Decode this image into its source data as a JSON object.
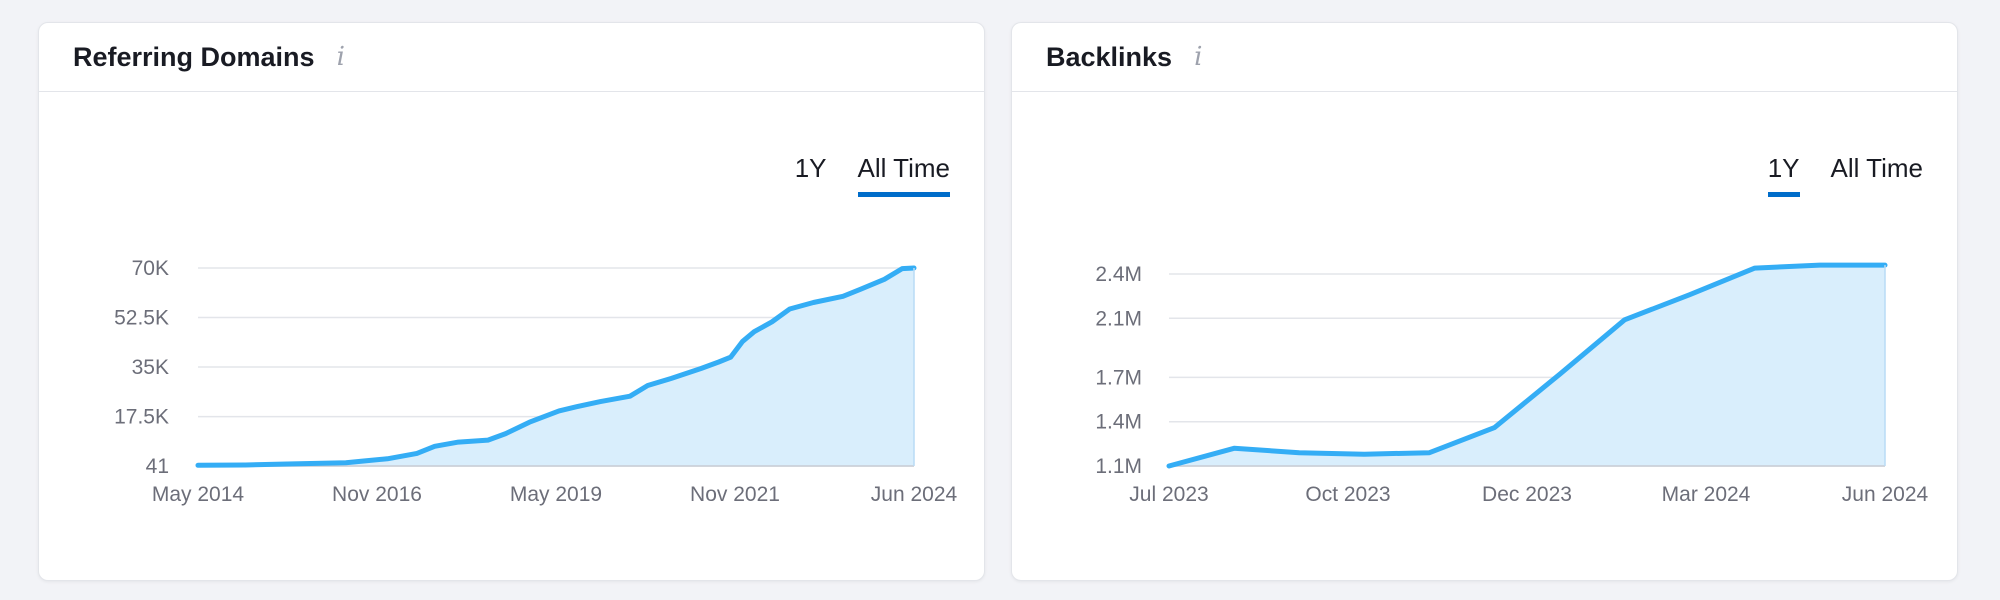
{
  "colors": {
    "line": "#34adf5",
    "area": "#d9eefc",
    "tab_active": "#006dca"
  },
  "referring_domains": {
    "title": "Referring Domains",
    "info_icon": "info-icon",
    "tabs": [
      {
        "label": "1Y",
        "active": false
      },
      {
        "label": "All Time",
        "active": true
      }
    ]
  },
  "backlinks": {
    "title": "Backlinks",
    "info_icon": "info-icon",
    "tabs": [
      {
        "label": "1Y",
        "active": true
      },
      {
        "label": "All Time",
        "active": false
      }
    ]
  },
  "chart_data": [
    {
      "type": "area",
      "title": "Referring Domains",
      "x_ticks": [
        "May 2014",
        "Nov 2016",
        "May 2019",
        "Nov 2021",
        "Jun 2024"
      ],
      "y_ticks": [
        "41",
        "17.5K",
        "35K",
        "52.5K",
        "70K"
      ],
      "ylim": [
        41,
        70000
      ],
      "grid": true,
      "x": [
        "2014-05",
        "2015-01",
        "2015-09",
        "2016-06",
        "2016-09",
        "2017-01",
        "2017-06",
        "2017-09",
        "2018-01",
        "2018-06",
        "2018-09",
        "2019-01",
        "2019-06",
        "2019-09",
        "2020-01",
        "2020-06",
        "2020-09",
        "2021-01",
        "2021-06",
        "2021-09",
        "2021-11",
        "2022-01",
        "2022-03",
        "2022-06",
        "2022-09",
        "2023-01",
        "2023-06",
        "2023-09",
        "2024-01",
        "2024-04",
        "2024-06"
      ],
      "y": [
        300,
        400,
        800,
        1200,
        1800,
        2600,
        4500,
        7000,
        8500,
        9200,
        11500,
        15500,
        19500,
        21000,
        22800,
        24700,
        28500,
        31000,
        34500,
        36800,
        38500,
        44000,
        47500,
        51000,
        55500,
        57800,
        60000,
        62500,
        66000,
        69800,
        70000
      ]
    },
    {
      "type": "area",
      "title": "Backlinks",
      "x_ticks": [
        "Jul 2023",
        "Oct 2023",
        "Dec 2023",
        "Mar 2024",
        "Jun 2024"
      ],
      "y_ticks": [
        "1.1M",
        "1.4M",
        "1.7M",
        "2.1M",
        "2.4M"
      ],
      "ylim": [
        1100000,
        2400000
      ],
      "grid": true,
      "x": [
        "Jul 2023",
        "Aug 2023",
        "Sep 2023",
        "Oct 2023",
        "Nov 2023",
        "Dec 2023",
        "Jan 2024",
        "Feb 2024",
        "Mar 2024",
        "Apr 2024",
        "May 2024",
        "Jun 2024"
      ],
      "y": [
        1100000,
        1220000,
        1190000,
        1180000,
        1190000,
        1360000,
        1720000,
        2090000,
        2260000,
        2440000,
        2460000,
        2460000
      ]
    }
  ]
}
